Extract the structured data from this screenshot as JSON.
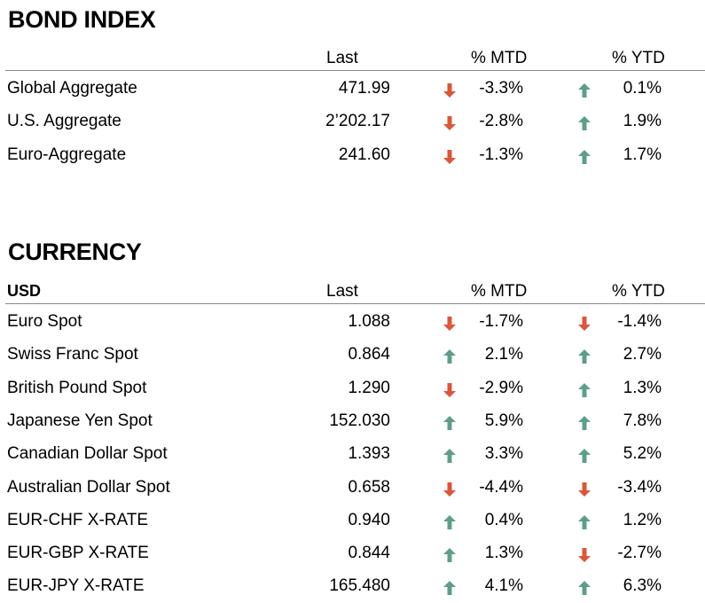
{
  "colors": {
    "down": "#d9573b",
    "up": "#5f9e86",
    "rule": "#888888"
  },
  "bond": {
    "title": "BOND INDEX",
    "columns": {
      "last": "Last",
      "mtd": "% MTD",
      "ytd": "% YTD"
    },
    "rows": [
      {
        "name": "Global Aggregate",
        "last": "471.99",
        "mtd": "-3.3%",
        "mtd_dir": "down",
        "ytd": "0.1%",
        "ytd_dir": "up"
      },
      {
        "name": "U.S. Aggregate",
        "last": "2’202.17",
        "mtd": "-2.8%",
        "mtd_dir": "down",
        "ytd": "1.9%",
        "ytd_dir": "up"
      },
      {
        "name": "Euro-Aggregate",
        "last": "241.60",
        "mtd": "-1.3%",
        "mtd_dir": "down",
        "ytd": "1.7%",
        "ytd_dir": "up"
      }
    ]
  },
  "currency": {
    "title": "CURRENCY",
    "corner": "USD",
    "columns": {
      "last": "Last",
      "mtd": "% MTD",
      "ytd": "% YTD"
    },
    "rows": [
      {
        "name": "Euro Spot",
        "last": "1.088",
        "mtd": "-1.7%",
        "mtd_dir": "down",
        "ytd": "-1.4%",
        "ytd_dir": "down"
      },
      {
        "name": "Swiss Franc Spot",
        "last": "0.864",
        "mtd": "2.1%",
        "mtd_dir": "up",
        "ytd": "2.7%",
        "ytd_dir": "up"
      },
      {
        "name": "British Pound Spot",
        "last": "1.290",
        "mtd": "-2.9%",
        "mtd_dir": "down",
        "ytd": "1.3%",
        "ytd_dir": "up"
      },
      {
        "name": "Japanese Yen Spot",
        "last": "152.030",
        "mtd": "5.9%",
        "mtd_dir": "up",
        "ytd": "7.8%",
        "ytd_dir": "up"
      },
      {
        "name": "Canadian Dollar Spot",
        "last": "1.393",
        "mtd": "3.3%",
        "mtd_dir": "up",
        "ytd": "5.2%",
        "ytd_dir": "up"
      },
      {
        "name": "Australian Dollar Spot",
        "last": "0.658",
        "mtd": "-4.4%",
        "mtd_dir": "down",
        "ytd": "-3.4%",
        "ytd_dir": "down"
      },
      {
        "name": "EUR-CHF X-RATE",
        "last": "0.940",
        "mtd": "0.4%",
        "mtd_dir": "up",
        "ytd": "1.2%",
        "ytd_dir": "up"
      },
      {
        "name": "EUR-GBP X-RATE",
        "last": "0.844",
        "mtd": "1.3%",
        "mtd_dir": "up",
        "ytd": "-2.7%",
        "ytd_dir": "down"
      },
      {
        "name": "EUR-JPY X-RATE",
        "last": "165.480",
        "mtd": "4.1%",
        "mtd_dir": "up",
        "ytd": "6.3%",
        "ytd_dir": "up"
      }
    ]
  }
}
